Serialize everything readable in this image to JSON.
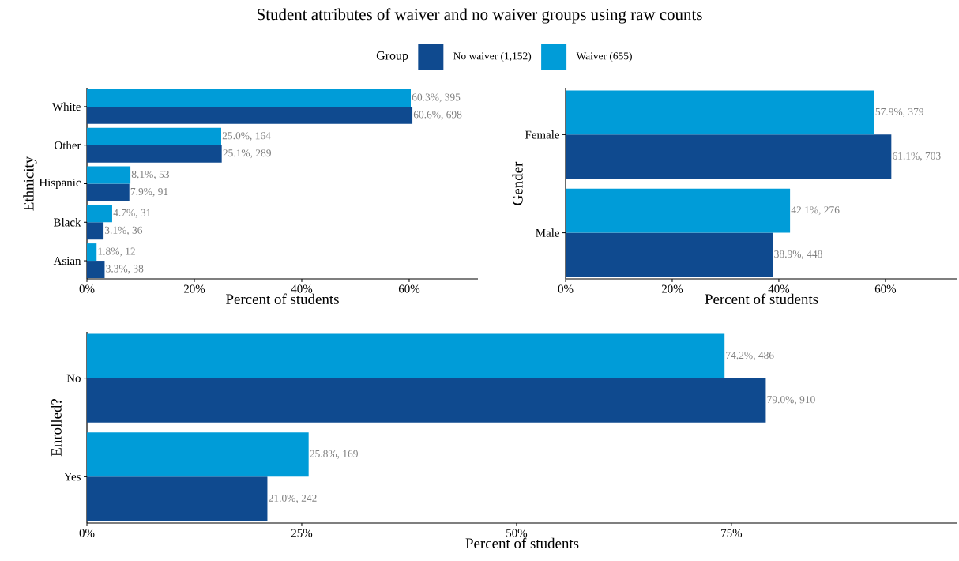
{
  "chart_data": [
    {
      "type": "bar",
      "orientation": "horizontal",
      "title": "Student attributes of waiver and no waiver groups using raw counts",
      "legend": "top",
      "legend_title": "Group",
      "categories": [
        "White",
        "Other",
        "Hispanic",
        "Black",
        "Asian"
      ],
      "xlabel": "Percent of students",
      "ylabel": "Ethnicity",
      "xlim": [
        0,
        72.8
      ],
      "xticks": [
        {
          "value": 0,
          "label": "0%"
        },
        {
          "value": 20,
          "label": "20%"
        },
        {
          "value": 40,
          "label": "40%"
        },
        {
          "value": 60,
          "label": "60%"
        }
      ],
      "series": [
        {
          "name": "No waiver (1,152)",
          "color": "#0f4a8f",
          "values": [
            60.6,
            25.1,
            7.9,
            3.1,
            3.3
          ],
          "value_labels": [
            "60.6%, 698",
            "25.1%, 289",
            "7.9%, 91",
            "3.1%, 36",
            "3.3%, 38"
          ]
        },
        {
          "name": "Waiver (655)",
          "color": "#009cd8",
          "values": [
            60.3,
            25.0,
            8.1,
            4.7,
            1.8
          ],
          "value_labels": [
            "60.3%, 395",
            "25.0%, 164",
            "8.1%, 53",
            "4.7%, 31",
            "1.8%, 12"
          ]
        }
      ]
    },
    {
      "type": "bar",
      "orientation": "horizontal",
      "categories": [
        "Female",
        "Male"
      ],
      "xlabel": "Percent of students",
      "ylabel": "Gender",
      "xlim": [
        0,
        73.5
      ],
      "xticks": [
        {
          "value": 0,
          "label": "0%"
        },
        {
          "value": 20,
          "label": "20%"
        },
        {
          "value": 40,
          "label": "40%"
        },
        {
          "value": 60,
          "label": "60%"
        }
      ],
      "series": [
        {
          "color": "#0f4a8f",
          "values": [
            61.1,
            38.9
          ],
          "value_labels": [
            "61.1%, 703",
            "38.9%, 448"
          ]
        },
        {
          "color": "#009cd8",
          "values": [
            57.9,
            42.1
          ],
          "value_labels": [
            "57.9%, 379",
            "42.1%, 276"
          ]
        }
      ]
    },
    {
      "type": "bar",
      "orientation": "horizontal",
      "categories": [
        "No",
        "Yes"
      ],
      "xlabel": "Percent of students",
      "ylabel": "Enrolled?",
      "xlim": [
        0,
        101.3
      ],
      "xticks": [
        {
          "value": 0,
          "label": "0%"
        },
        {
          "value": 25,
          "label": "25%"
        },
        {
          "value": 50,
          "label": "50%"
        },
        {
          "value": 75,
          "label": "75%"
        }
      ],
      "series": [
        {
          "color": "#0f4a8f",
          "values": [
            79.0,
            21.0
          ],
          "value_labels": [
            "79.0%, 910",
            "21.0%, 242"
          ]
        },
        {
          "color": "#009cd8",
          "values": [
            74.2,
            25.8
          ],
          "value_labels": [
            "74.2%, 486",
            "25.8%, 169"
          ]
        }
      ]
    }
  ]
}
